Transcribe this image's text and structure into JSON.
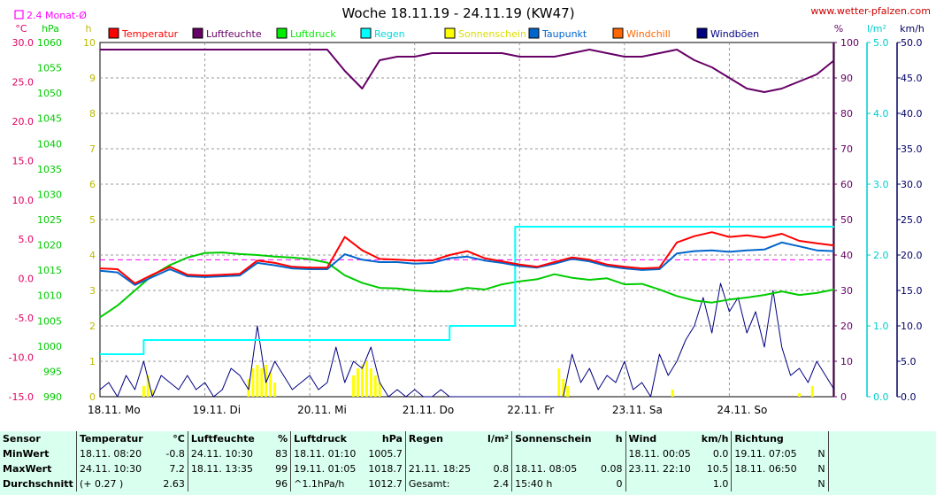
{
  "header": {
    "title": "Woche 18.11.19 - 24.11.19 (KW47)",
    "url": "www.wetter-pfalzen.com",
    "avg_label": "2.4 Monat-Ø",
    "avg_color": "#ff00ff"
  },
  "axes": {
    "temperature": {
      "unit": "°C",
      "min": -15,
      "max": 30,
      "ticks": [
        "30.0",
        "25.0",
        "20.0",
        "15.0",
        "10.0",
        "5.0",
        "0.0",
        "-5.0",
        "-10.0",
        "-15.0"
      ],
      "color": "#e00060"
    },
    "pressure": {
      "unit": "hPa",
      "min": 990,
      "max": 1060,
      "ticks": [
        "1060",
        "1055",
        "1050",
        "1045",
        "1040",
        "1035",
        "1030",
        "1025",
        "1020",
        "1015",
        "1010",
        "1005",
        "1000",
        "995",
        "990"
      ],
      "color": "#00cc00"
    },
    "sunshine": {
      "unit": "h",
      "min": 0,
      "max": 10,
      "ticks": [
        "10",
        "9",
        "8",
        "7",
        "6",
        "5",
        "4",
        "3",
        "2",
        "1",
        "0"
      ],
      "color": "#bbbb00"
    },
    "humidity": {
      "unit": "%",
      "min": 0,
      "max": 100,
      "ticks": [
        "100",
        "90",
        "80",
        "70",
        "60",
        "50",
        "40",
        "30",
        "20",
        "10",
        "0"
      ],
      "color": "#660066"
    },
    "rain": {
      "unit": "l/m²",
      "min": 0,
      "max": 5,
      "ticks": [
        "5.0",
        "4.0",
        "3.0",
        "2.0",
        "1.0",
        "0.0"
      ],
      "color": "#00cccc"
    },
    "wind": {
      "unit": "km/h",
      "min": 0,
      "max": 50,
      "ticks": [
        "50.0",
        "45.0",
        "40.0",
        "35.0",
        "30.0",
        "25.0",
        "20.0",
        "15.0",
        "10.0",
        "5.0",
        "0.0"
      ],
      "color": "#000066"
    },
    "x_days": [
      "18.11. Mo",
      "19.11. Di",
      "20.11. Mi",
      "21.11. Do",
      "22.11. Fr",
      "23.11. Sa",
      "24.11. So"
    ]
  },
  "chart_data": {
    "type": "line",
    "title": "Woche 18.11.19 - 24.11.19 (KW47)",
    "x_unit_note": "hours since 18.11. 00:00",
    "x_range": [
      0,
      168
    ],
    "monthly_avg_temperature": 2.4,
    "series": [
      {
        "name": "Temperatur",
        "axis": "temperature",
        "color": "#ff0000",
        "x": [
          0,
          4,
          8,
          12,
          16,
          20,
          24,
          28,
          32,
          36,
          40,
          44,
          48,
          52,
          56,
          60,
          64,
          68,
          72,
          76,
          80,
          84,
          88,
          92,
          96,
          100,
          104,
          108,
          112,
          116,
          120,
          124,
          128,
          132,
          136,
          140,
          144,
          148,
          152,
          156,
          160,
          164,
          168
        ],
        "y": [
          1.3,
          1.2,
          -0.6,
          0.5,
          1.5,
          0.5,
          0.4,
          0.5,
          0.6,
          2.3,
          2.0,
          1.5,
          1.4,
          1.4,
          5.3,
          3.6,
          2.5,
          2.4,
          2.3,
          2.3,
          3.0,
          3.5,
          2.6,
          2.2,
          1.8,
          1.5,
          2.1,
          2.7,
          2.4,
          1.8,
          1.5,
          1.3,
          1.4,
          4.6,
          5.4,
          5.9,
          5.3,
          5.5,
          5.2,
          5.7,
          4.8,
          4.5,
          4.2
        ]
      },
      {
        "name": "Luftfeuchte",
        "axis": "humidity",
        "color": "#660066",
        "x": [
          0,
          4,
          8,
          12,
          16,
          20,
          24,
          28,
          32,
          36,
          40,
          44,
          48,
          52,
          56,
          60,
          64,
          68,
          72,
          76,
          80,
          84,
          88,
          92,
          96,
          100,
          104,
          108,
          112,
          116,
          120,
          124,
          128,
          132,
          136,
          140,
          144,
          148,
          152,
          156,
          160,
          164,
          168
        ],
        "y": [
          98,
          98,
          98,
          98,
          98,
          98,
          98,
          98,
          98,
          98,
          98,
          98,
          98,
          98,
          92,
          87,
          95,
          96,
          96,
          97,
          97,
          97,
          97,
          97,
          96,
          96,
          96,
          97,
          98,
          97,
          96,
          96,
          97,
          98,
          95,
          93,
          90,
          87,
          86,
          87,
          89,
          91,
          95
        ]
      },
      {
        "name": "Luftdruck",
        "axis": "pressure",
        "color": "#00cc00",
        "x": [
          0,
          4,
          8,
          12,
          16,
          20,
          24,
          28,
          32,
          36,
          40,
          44,
          48,
          52,
          56,
          60,
          64,
          68,
          72,
          76,
          80,
          84,
          88,
          92,
          96,
          100,
          104,
          108,
          112,
          116,
          120,
          124,
          128,
          132,
          136,
          140,
          144,
          148,
          152,
          156,
          160,
          164,
          168
        ],
        "y": [
          1005.7,
          1008,
          1011,
          1014,
          1016,
          1017.5,
          1018.4,
          1018.5,
          1018.2,
          1018,
          1017.7,
          1017.5,
          1017.2,
          1016.5,
          1014,
          1012.5,
          1011.5,
          1011.4,
          1011,
          1010.8,
          1010.8,
          1011.5,
          1011.2,
          1012.2,
          1012.8,
          1013.2,
          1014.2,
          1013.5,
          1013.1,
          1013.4,
          1012.2,
          1012.3,
          1011.2,
          1009.9,
          1009,
          1008.6,
          1009.2,
          1009.6,
          1010.1,
          1010.8,
          1010.1,
          1010.5,
          1011.2
        ]
      },
      {
        "name": "Regen",
        "axis": "rain",
        "color": "#00ffff",
        "step": true,
        "x": [
          0,
          10,
          20,
          30,
          40,
          50,
          60,
          70,
          80,
          85,
          90,
          95,
          100,
          110,
          120,
          130,
          140,
          150,
          160,
          168
        ],
        "y": [
          0.6,
          0.8,
          0.8,
          0.8,
          0.8,
          0.8,
          0.8,
          0.8,
          1.0,
          1.0,
          1.0,
          2.4,
          2.4,
          2.4,
          2.4,
          2.4,
          2.4,
          2.4,
          2.4,
          2.4
        ]
      },
      {
        "name": "Sonnenschein",
        "axis": "sunshine",
        "color": "#ffff00",
        "bars": true,
        "x": [
          10,
          11,
          12,
          34,
          35,
          36,
          37,
          38,
          39,
          40,
          58,
          59,
          60,
          61,
          62,
          63,
          64,
          105,
          106,
          107,
          131,
          160,
          163
        ],
        "y": [
          0.3,
          0.6,
          0.2,
          0.5,
          0.8,
          0.9,
          0.8,
          0.9,
          0.7,
          0.4,
          0.6,
          0.8,
          0.9,
          1.0,
          0.8,
          0.6,
          0.4,
          0.8,
          0.5,
          0.3,
          0.2,
          0.1,
          0.3
        ]
      },
      {
        "name": "Taupunkt",
        "axis": "temperature",
        "color": "#0066cc",
        "x": [
          0,
          4,
          8,
          12,
          16,
          20,
          24,
          28,
          32,
          36,
          40,
          44,
          48,
          52,
          56,
          60,
          64,
          68,
          72,
          76,
          80,
          84,
          88,
          92,
          96,
          100,
          104,
          108,
          112,
          116,
          120,
          124,
          128,
          132,
          136,
          140,
          144,
          148,
          152,
          156,
          160,
          164,
          168
        ],
        "y": [
          1.0,
          0.8,
          -0.8,
          0.2,
          1.2,
          0.3,
          0.2,
          0.3,
          0.4,
          2.0,
          1.7,
          1.3,
          1.2,
          1.2,
          3.1,
          2.4,
          2.1,
          2.1,
          1.9,
          2.0,
          2.6,
          2.8,
          2.3,
          2.0,
          1.6,
          1.4,
          1.9,
          2.5,
          2.2,
          1.6,
          1.3,
          1.1,
          1.2,
          3.2,
          3.5,
          3.6,
          3.4,
          3.6,
          3.7,
          4.6,
          4.1,
          3.6,
          3.5
        ]
      },
      {
        "name": "Windchill",
        "axis": "temperature",
        "color": "#ff6600",
        "values": []
      },
      {
        "name": "Windböen",
        "axis": "wind",
        "color": "#000080",
        "x": [
          0,
          2,
          4,
          6,
          8,
          10,
          12,
          14,
          16,
          18,
          20,
          22,
          24,
          26,
          28,
          30,
          32,
          34,
          36,
          38,
          40,
          42,
          44,
          46,
          48,
          50,
          52,
          54,
          56,
          58,
          60,
          62,
          64,
          66,
          68,
          70,
          72,
          74,
          76,
          78,
          80,
          82,
          84,
          86,
          88,
          90,
          92,
          94,
          96,
          98,
          100,
          102,
          104,
          106,
          108,
          110,
          112,
          114,
          116,
          118,
          120,
          122,
          124,
          126,
          128,
          130,
          132,
          134,
          136,
          138,
          140,
          142,
          144,
          146,
          148,
          150,
          152,
          154,
          156,
          158,
          160,
          162,
          164,
          166,
          168
        ],
        "y": [
          1,
          2,
          0,
          3,
          1,
          5,
          0,
          3,
          2,
          1,
          3,
          1,
          2,
          0,
          1,
          4,
          3,
          1,
          10,
          2,
          5,
          3,
          1,
          2,
          3,
          1,
          2,
          7,
          2,
          5,
          4,
          7,
          2,
          0,
          1,
          0,
          1,
          0,
          0,
          1,
          0,
          0,
          0,
          0,
          0,
          0,
          0,
          0,
          0,
          0,
          0,
          0,
          0,
          0,
          6,
          2,
          4,
          1,
          3,
          2,
          5,
          1,
          2,
          0,
          6,
          3,
          5,
          8,
          10,
          14,
          9,
          16,
          12,
          14,
          9,
          12,
          7,
          15,
          7,
          3,
          4,
          2,
          5,
          3,
          1
        ]
      }
    ]
  },
  "legend": {
    "items": [
      {
        "label": "Temperatur",
        "color": "#ff0000"
      },
      {
        "label": "Luftfeuchte",
        "color": "#660066"
      },
      {
        "label": "Luftdruck",
        "color": "#00ee00"
      },
      {
        "label": "Regen",
        "color": "#00ffff"
      },
      {
        "label": "Sonnenschein",
        "color": "#ffff00"
      },
      {
        "label": "Taupunkt",
        "color": "#0066cc"
      },
      {
        "label": "Windchill",
        "color": "#ff6600"
      },
      {
        "label": "Windböen",
        "color": "#000080"
      }
    ]
  },
  "stats": {
    "headers": {
      "sensor": "Sensor",
      "temp": "Temperatur",
      "temp_u": "°C",
      "hum": "Luftfeuchte",
      "hum_u": "%",
      "press": "Luftdruck",
      "press_u": "hPa",
      "rain": "Regen",
      "rain_u": "l/m²",
      "sun": "Sonnenschein",
      "sun_u": "h",
      "wind": "Wind",
      "wind_u": "km/h",
      "dir": "Richtung"
    },
    "rows": [
      {
        "label": "MinWert",
        "temp_t": "18.11.  08:20",
        "temp_v": "-0.8",
        "hum_t": "24.11.  10:30",
        "hum_v": "83",
        "press_t": "18.11.  01:10",
        "press_v": "1005.7",
        "rain_t": "",
        "rain_v": "",
        "sun_t": "",
        "sun_v": "",
        "wind_t": "18.11.  00:05",
        "wind_v": "0.0",
        "dir_t": "19.11.  07:05",
        "dir_v": "N"
      },
      {
        "label": "MaxWert",
        "temp_t": "24.11.  10:30",
        "temp_v": "7.2",
        "hum_t": "18.11.  13:35",
        "hum_v": "99",
        "press_t": "19.11.  01:05",
        "press_v": "1018.7",
        "rain_t": "21.11.  18:25",
        "rain_v": "0.8",
        "sun_t": "18.11.  08:05",
        "sun_v": "0.08",
        "wind_t": "23.11.  22:10",
        "wind_v": "10.5",
        "dir_t": "18.11.  06:50",
        "dir_v": "N"
      },
      {
        "label": "Durchschnitt",
        "temp_t": "(+ 0.27 )",
        "temp_v": "2.63",
        "hum_t": "",
        "hum_v": "96",
        "press_t": "^1.1hPa/h",
        "press_v": "1012.7",
        "rain_t": "Gesamt:",
        "rain_v": "2.4",
        "sun_t": "15:40 h",
        "sun_v": "0",
        "wind_t": "",
        "wind_v": "1.0",
        "dir_t": "",
        "dir_v": "N"
      }
    ]
  }
}
